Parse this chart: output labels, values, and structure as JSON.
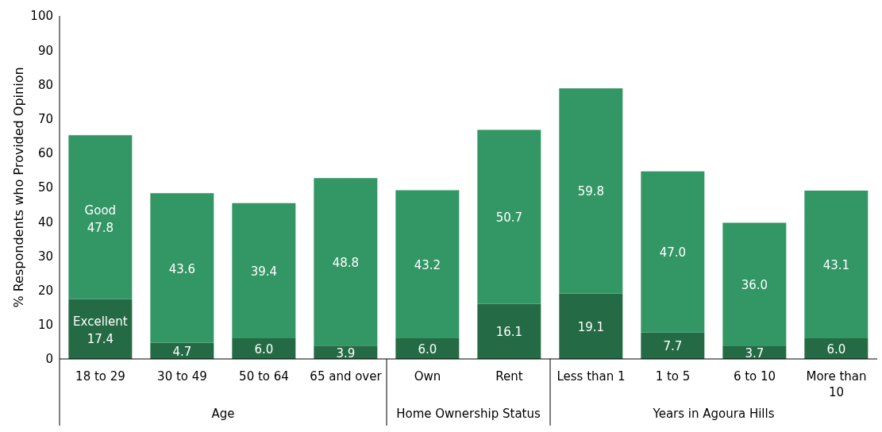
{
  "chart_data": {
    "type": "bar",
    "stacked": true,
    "ylabel": "% Respondents who Provided Opinion",
    "categories": [
      "18 to 29",
      "30 to 49",
      "50 to 64",
      "65 and over",
      "Own",
      "Rent",
      "Less than 1",
      "1 to 5",
      "6 to 10",
      "More than 10"
    ],
    "series": [
      {
        "name": "Excellent",
        "color": "#246b45",
        "values": [
          17.4,
          4.7,
          6.0,
          3.9,
          6.0,
          16.1,
          19.1,
          7.7,
          3.7,
          6.0
        ],
        "value_labels": [
          "17.4",
          "4.7",
          "6.0",
          "3.9",
          "6.0",
          "16.1",
          "19.1",
          "7.7",
          "3.7",
          "6.0"
        ]
      },
      {
        "name": "Good",
        "color": "#339665",
        "values": [
          47.8,
          43.6,
          39.4,
          48.8,
          43.2,
          50.7,
          59.8,
          47.0,
          36.0,
          43.1
        ],
        "value_labels": [
          "47.8",
          "43.6",
          "39.4",
          "48.8",
          "43.2",
          "50.7",
          "59.8",
          "47.0",
          "36.0",
          "43.1"
        ]
      }
    ],
    "ylim": [
      0,
      100
    ],
    "yticks": [
      0,
      10,
      20,
      30,
      40,
      50,
      60,
      70,
      80,
      90,
      100
    ],
    "grid": false,
    "legend": false,
    "annotations": [
      "Age",
      "Home Ownership Status",
      "Years in Agoura Hills"
    ]
  }
}
